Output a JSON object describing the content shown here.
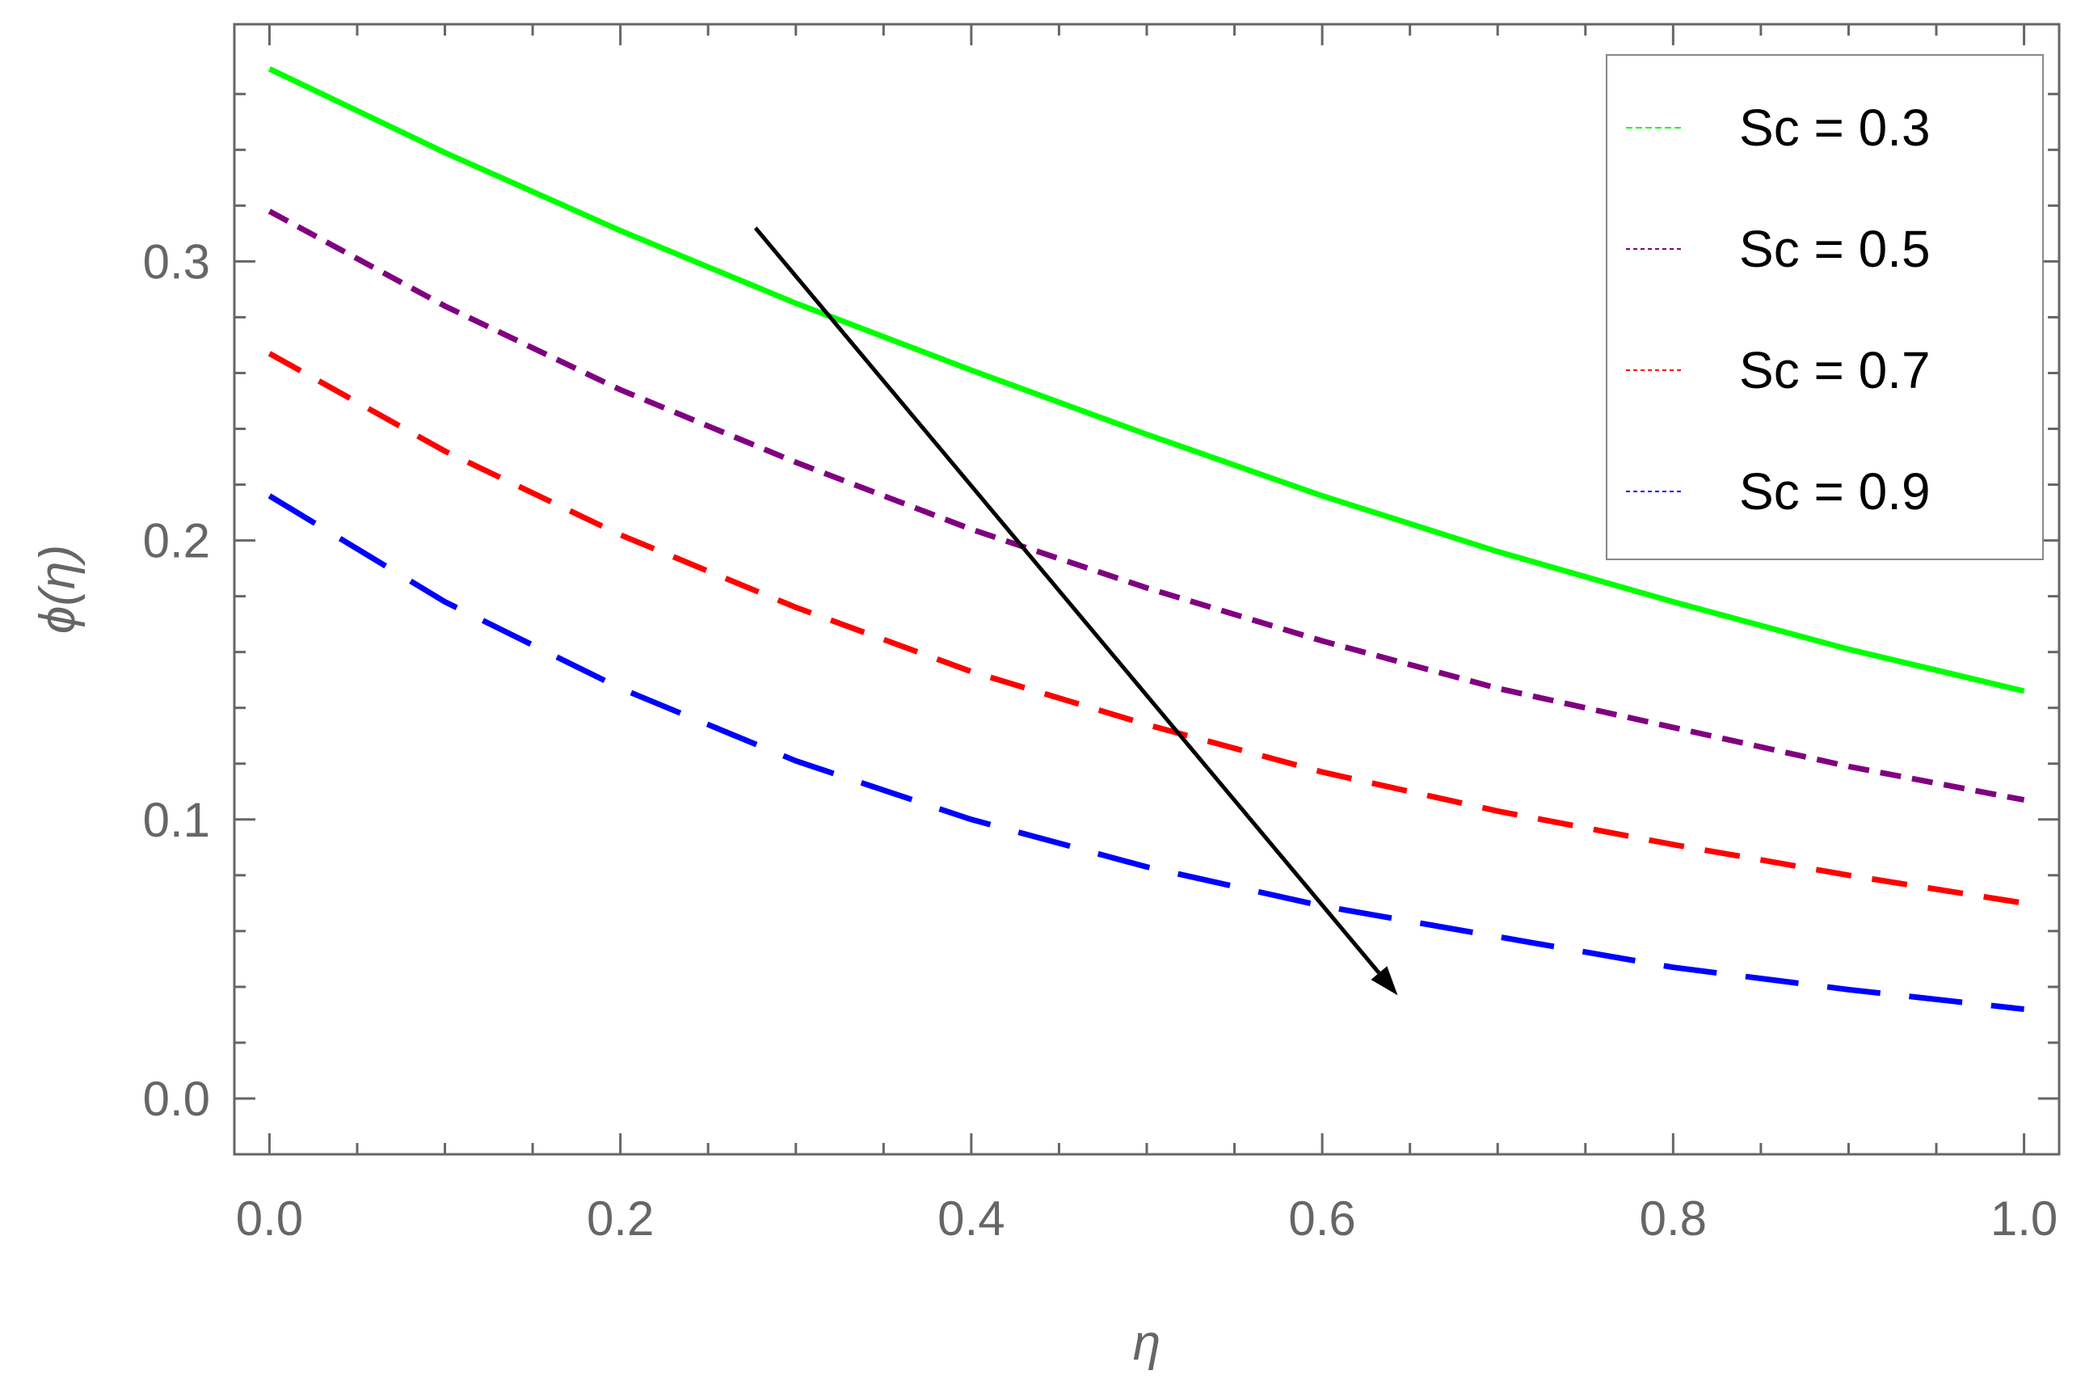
{
  "chart_data": {
    "type": "line",
    "xlabel": "η",
    "ylabel": "ϕ(η)",
    "xlim": [
      -0.02,
      1.02
    ],
    "ylim": [
      -0.02,
      0.385
    ],
    "grid": false,
    "legend_position": "top-right",
    "x_ticks": [
      "0.0",
      "0.2",
      "0.4",
      "0.6",
      "0.8",
      "1.0"
    ],
    "y_ticks": [
      "0.0",
      "0.1",
      "0.2",
      "0.3"
    ],
    "x": [
      0.0,
      0.1,
      0.2,
      0.3,
      0.4,
      0.5,
      0.6,
      0.7,
      0.8,
      0.9,
      1.0
    ],
    "series": [
      {
        "name": "Sc = 0.3",
        "color": "#00ff00",
        "dash": "solid",
        "values": [
          0.369,
          0.339,
          0.311,
          0.285,
          0.261,
          0.238,
          0.216,
          0.196,
          0.178,
          0.161,
          0.146
        ]
      },
      {
        "name": "Sc = 0.5",
        "color": "#800080",
        "dash": "short-dash",
        "values": [
          0.318,
          0.284,
          0.254,
          0.228,
          0.204,
          0.183,
          0.164,
          0.147,
          0.133,
          0.119,
          0.107
        ]
      },
      {
        "name": "Sc = 0.7",
        "color": "#ff0000",
        "dash": "medium-dash",
        "values": [
          0.267,
          0.232,
          0.202,
          0.176,
          0.153,
          0.134,
          0.117,
          0.103,
          0.091,
          0.08,
          0.07
        ]
      },
      {
        "name": "Sc = 0.9",
        "color": "#0000ff",
        "dash": "long-dash",
        "values": [
          0.216,
          0.178,
          0.147,
          0.121,
          0.1,
          0.083,
          0.069,
          0.058,
          0.047,
          0.039,
          0.032
        ]
      }
    ],
    "annotations": [
      {
        "type": "arrow",
        "meaning": "increasing Sc",
        "from": [
          0.277,
          0.312
        ],
        "to": [
          0.643,
          0.037
        ],
        "color": "#000000"
      }
    ]
  }
}
